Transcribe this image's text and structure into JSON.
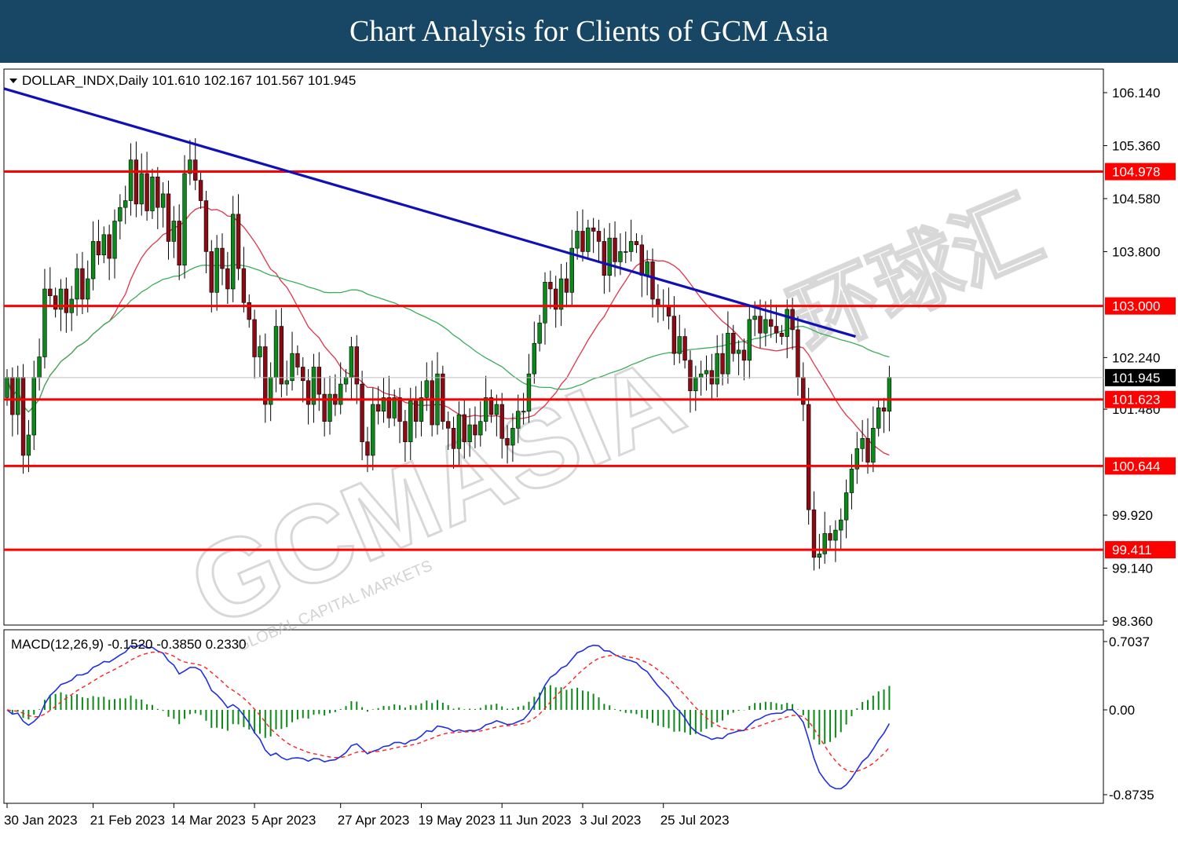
{
  "banner": {
    "title": "Chart Analysis for Clients of GCM Asia"
  },
  "symbol_info": "DOLLAR_INDX,Daily  101.610 102.167 101.567 101.945",
  "macd_info": "MACD(12,26,9) -0.1520 -0.3850 0.2330",
  "watermark": {
    "main": "GCMASIA",
    "sub": "GLOBAL CAPITAL MARKETS",
    "cn": "环球汇"
  },
  "colors": {
    "banner_bg": "#184766",
    "bull": "#0a8a18",
    "bear": "#8b0a14",
    "trendline": "#1010b8",
    "level": "#ff0000",
    "ma_fast": "#e0344a",
    "ma_slow": "#3aae5a",
    "macd_line": "#2030e0",
    "signal_line": "#ff2020",
    "histogram": "#0a8a18"
  },
  "chart_data": [
    {
      "type": "candlestick",
      "title": "DOLLAR_INDX,Daily",
      "last_ohlc": {
        "open": 101.61,
        "high": 102.167,
        "low": 101.567,
        "close": 101.945
      },
      "ylim": [
        98.36,
        106.5
      ],
      "y_ticks": [
        106.14,
        105.36,
        104.58,
        103.8,
        102.24,
        101.48,
        99.92,
        99.14,
        98.36
      ],
      "y_tick_labels": [
        "106.140",
        "105.360",
        "104.580",
        "103.800",
        "102.240",
        "101.480",
        "99.920",
        "99.140",
        "98.360"
      ],
      "x_tick_labels": [
        "30 Jan 2023",
        "21 Feb 2023",
        "14 Mar 2023",
        "5 Apr 2023",
        "27 Apr 2023",
        "19 May 2023",
        "11 Jun 2023",
        "3 Jul 2023",
        "25 Jul 2023"
      ],
      "x_tick_index": [
        0,
        16,
        31,
        46,
        62,
        77,
        92,
        107,
        122
      ],
      "horizontal_levels": [
        {
          "value": 104.978,
          "label": "104.978"
        },
        {
          "value": 103.0,
          "label": "103.000"
        },
        {
          "value": 101.623,
          "label": "101.623"
        },
        {
          "value": 100.644,
          "label": "100.644"
        },
        {
          "value": 99.411,
          "label": "99.411"
        }
      ],
      "current_price": {
        "value": 101.945,
        "label": "101.945"
      },
      "trendline": {
        "from": {
          "index": 0,
          "value": 106.2
        },
        "to": {
          "index": 157,
          "value": 102.55
        }
      },
      "candles_close": [
        101.95,
        101.4,
        101.95,
        100.8,
        101.1,
        101.95,
        102.25,
        103.25,
        103.15,
        102.95,
        103.25,
        102.9,
        103.1,
        103.55,
        103.1,
        103.4,
        103.95,
        103.75,
        104.05,
        103.7,
        104.25,
        104.45,
        104.55,
        105.15,
        104.5,
        104.95,
        104.4,
        104.9,
        104.45,
        104.65,
        103.95,
        104.25,
        103.6,
        104.95,
        105.15,
        104.85,
        104.55,
        103.8,
        103.2,
        103.85,
        103.55,
        103.25,
        104.35,
        103.55,
        103.05,
        102.8,
        102.25,
        102.4,
        101.55,
        101.95,
        102.7,
        101.85,
        101.9,
        102.3,
        102.1,
        101.9,
        101.55,
        102.1,
        101.7,
        101.3,
        101.7,
        101.55,
        101.85,
        101.95,
        102.4,
        101.85,
        101.0,
        100.8,
        101.55,
        101.45,
        101.65,
        101.35,
        101.65,
        101.3,
        101.0,
        101.6,
        101.3,
        101.65,
        101.9,
        101.25,
        102.0,
        101.3,
        101.2,
        100.9,
        101.4,
        101.0,
        101.25,
        101.1,
        101.3,
        101.65,
        101.4,
        101.55,
        101.05,
        100.95,
        101.2,
        101.45,
        101.45,
        102.0,
        102.45,
        102.75,
        103.35,
        103.25,
        102.95,
        103.4,
        103.2,
        103.85,
        104.1,
        103.8,
        104.15,
        104.1,
        103.95,
        103.45,
        104.0,
        103.65,
        103.8,
        103.8,
        103.95,
        103.9,
        103.45,
        103.65,
        103.1,
        103.0,
        103.0,
        102.85,
        102.3,
        102.55,
        102.2,
        101.75,
        101.95,
        102.0,
        102.05,
        101.85,
        102.3,
        102.0,
        102.6,
        102.3,
        102.35,
        102.2,
        102.8,
        102.85,
        102.6,
        102.8,
        102.7,
        102.6,
        102.55,
        102.95,
        102.65,
        101.95,
        101.55,
        100.0,
        99.3,
        99.35,
        99.65,
        99.55,
        99.7,
        99.85,
        100.25,
        100.6,
        100.9,
        101.05,
        100.7,
        101.2,
        101.5,
        101.45,
        101.95
      ],
      "series": [
        {
          "name": "MA fast",
          "color": "#e0344a"
        },
        {
          "name": "MA slow",
          "color": "#3aae5a"
        }
      ]
    },
    {
      "type": "macd",
      "title": "MACD(12,26,9)",
      "values": {
        "macd": -0.152,
        "signal": -0.385,
        "histogram": 0.233
      },
      "ylim": [
        -0.8735,
        0.7037
      ],
      "y_ticks": [
        0.7037,
        0.0,
        -0.8735
      ],
      "y_tick_labels": [
        "0.7037",
        "0.00",
        "-0.8735"
      ]
    }
  ]
}
